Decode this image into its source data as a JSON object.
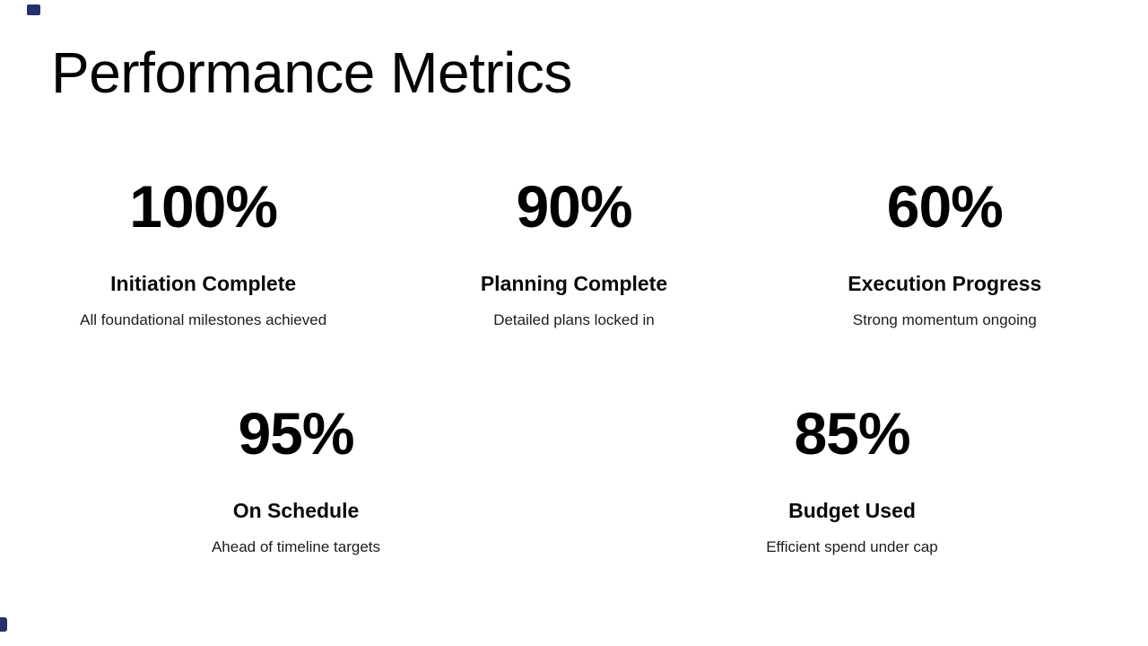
{
  "slide": {
    "title": "Performance Metrics",
    "colors": {
      "background": "#ffffff",
      "text": "#000000",
      "accent": "#26316b"
    },
    "metrics_row1": [
      {
        "value": "100%",
        "label": "Initiation Complete",
        "description": "All foundational milestones achieved"
      },
      {
        "value": "90%",
        "label": "Planning Complete",
        "description": "Detailed plans locked in"
      },
      {
        "value": "60%",
        "label": "Execution Progress",
        "description": "Strong momentum ongoing"
      }
    ],
    "metrics_row2": [
      {
        "value": "95%",
        "label": "On Schedule",
        "description": "Ahead of timeline targets"
      },
      {
        "value": "85%",
        "label": "Budget Used",
        "description": "Efficient spend under cap"
      }
    ]
  }
}
